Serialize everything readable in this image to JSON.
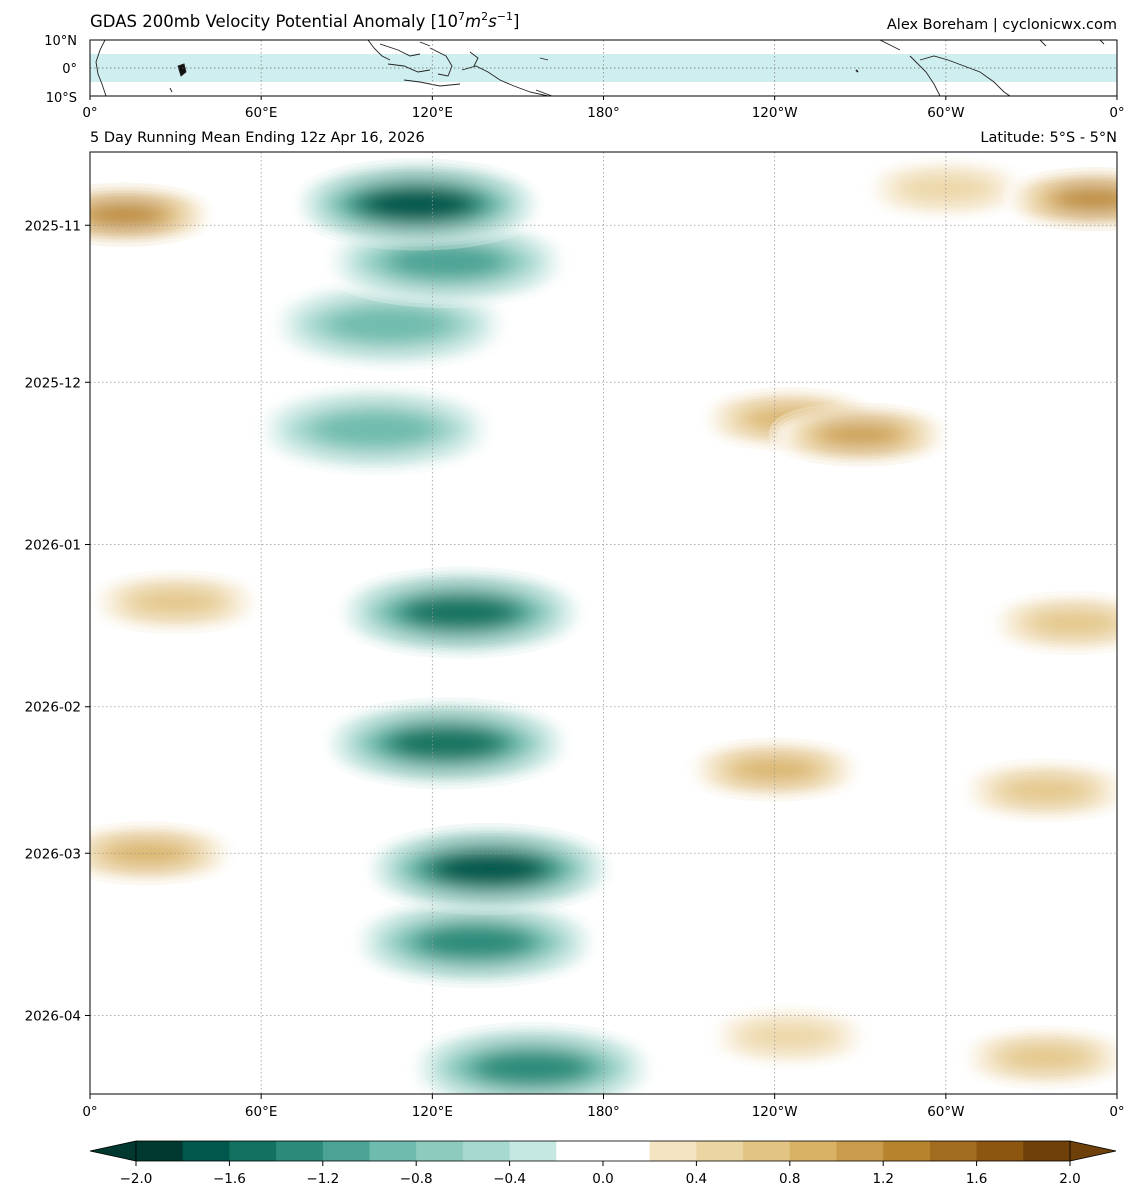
{
  "header": {
    "title_main": "GDAS 200mb Velocity Potential Anomaly [10",
    "title_sup7": "7",
    "title_m": "m",
    "title_sup2": "2",
    "title_s": "s",
    "title_supm1": "−1",
    "title_close": "]",
    "credit": "Alex Boreham | cyclonicwx.com",
    "subtitle_left": "5 Day Running Mean Ending 12z Apr 16, 2026",
    "subtitle_right": "Latitude: 5°S - 5°N"
  },
  "map_panel": {
    "lat_labels": [
      "10°N",
      "0°",
      "10°S"
    ],
    "lon_labels": [
      "0°",
      "60°E",
      "120°E",
      "180°",
      "120°W",
      "60°W",
      "0°"
    ],
    "band": "5°S - 5°N",
    "band_color": "#cfeeef"
  },
  "chart_data": {
    "type": "heatmap",
    "title": "GDAS 200mb Velocity Potential Anomaly [10^7 m^2 s^-1]",
    "subtitle": "5 Day Running Mean Ending 12z Apr 16, 2026",
    "x_axis": {
      "ticks": [
        "0°",
        "60°E",
        "120°E",
        "180°",
        "120°W",
        "60°W",
        "0°"
      ],
      "range_deg_east": [
        0,
        360
      ]
    },
    "y_axis": {
      "ticks": [
        "2025-11",
        "2025-12",
        "2026-01",
        "2026-02",
        "2026-03",
        "2026-04"
      ],
      "range": [
        "2025-10-18",
        "2026-04-16"
      ],
      "tick_dates": [
        "2025-11-01",
        "2025-12-01",
        "2026-01-01",
        "2026-02-01",
        "2026-03-01",
        "2026-04-01"
      ]
    },
    "grid": true,
    "colorbar": {
      "levels": [
        -2.0,
        -1.8,
        -1.6,
        -1.4,
        -1.2,
        -1.0,
        -0.8,
        -0.6,
        -0.4,
        -0.2,
        0.0,
        0.2,
        0.4,
        0.6,
        0.8,
        1.0,
        1.2,
        1.4,
        1.6,
        1.8,
        2.0
      ],
      "tick_labels": [
        "−2.0",
        "−1.6",
        "−1.2",
        "−0.8",
        "−0.4",
        "0.0",
        "0.4",
        "0.8",
        "1.2",
        "1.6",
        "2.0"
      ],
      "colors": [
        "#01382f",
        "#00574c",
        "#12725f",
        "#2b8a78",
        "#4ba394",
        "#6fbbad",
        "#8ecbbf",
        "#a8d9d0",
        "#c6e8e3",
        "#ffffff",
        "#ffffff",
        "#f4e4c2",
        "#ebd5a3",
        "#e2c483",
        "#d9b266",
        "#c99b4b",
        "#b7842e",
        "#a16c1e",
        "#8c5510",
        "#6e400a"
      ],
      "extend": "both"
    },
    "anomaly_features": [
      {
        "lon": 115,
        "date": "2025-10-28",
        "value": -1.9
      },
      {
        "lon": 125,
        "date": "2025-11-08",
        "value": -1.2
      },
      {
        "lon": 105,
        "date": "2025-11-20",
        "value": -1.0
      },
      {
        "lon": 100,
        "date": "2025-12-10",
        "value": -1.0
      },
      {
        "lon": 130,
        "date": "2026-01-14",
        "value": -1.6
      },
      {
        "lon": 125,
        "date": "2026-02-08",
        "value": -1.6
      },
      {
        "lon": 140,
        "date": "2026-03-04",
        "value": -1.8
      },
      {
        "lon": 135,
        "date": "2026-03-18",
        "value": -1.3
      },
      {
        "lon": 155,
        "date": "2026-04-11",
        "value": -1.4
      },
      {
        "lon": 12,
        "date": "2025-10-30",
        "value": 1.3
      },
      {
        "lon": 352,
        "date": "2025-10-27",
        "value": 1.4
      },
      {
        "lon": 300,
        "date": "2025-10-25",
        "value": 0.7
      },
      {
        "lon": 245,
        "date": "2025-12-08",
        "value": 1.0
      },
      {
        "lon": 270,
        "date": "2025-12-11",
        "value": 1.1
      },
      {
        "lon": 30,
        "date": "2026-01-12",
        "value": 0.8
      },
      {
        "lon": 345,
        "date": "2026-01-16",
        "value": 0.8
      },
      {
        "lon": 240,
        "date": "2026-02-13",
        "value": 1.0
      },
      {
        "lon": 335,
        "date": "2026-02-17",
        "value": 0.8
      },
      {
        "lon": 20,
        "date": "2026-03-01",
        "value": 1.0
      },
      {
        "lon": 245,
        "date": "2026-04-05",
        "value": 0.7
      },
      {
        "lon": 335,
        "date": "2026-04-09",
        "value": 0.8
      }
    ]
  }
}
